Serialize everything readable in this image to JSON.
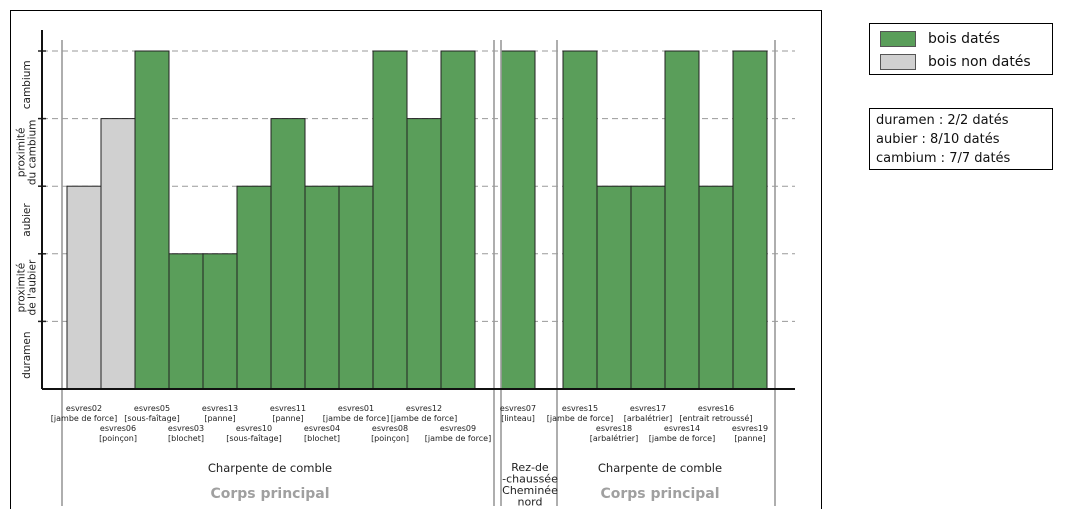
{
  "chart_data": {
    "type": "bar",
    "y_levels": [
      "duramen",
      "proximité de l'aubier",
      "aubier",
      "proximité du cambium",
      "cambium"
    ],
    "y_tick_labels": [
      {
        "lines": [
          "duramen"
        ]
      },
      {
        "lines": [
          "proximité",
          "de l'aubier"
        ]
      },
      {
        "lines": [
          "aubier"
        ]
      },
      {
        "lines": [
          "proximité",
          "du cambium"
        ]
      },
      {
        "lines": [
          "cambium"
        ]
      }
    ],
    "ylim": [
      0,
      5
    ],
    "grid": true,
    "legend_position": "top-right",
    "series": [
      {
        "name": "bois datés",
        "color": "#5a9e5a"
      },
      {
        "name": "bois non datés",
        "color": "#d0d0d0"
      }
    ],
    "groups": [
      {
        "section": "Charpente de comble",
        "area": "Corps principal",
        "bars": [
          {
            "id": "esvres02",
            "role": "[jambe de force]",
            "value": 3,
            "dated": false
          },
          {
            "id": "esvres06",
            "role": "[poinçon]",
            "value": 4,
            "dated": false
          },
          {
            "id": "esvres05",
            "role": "[sous-faîtage]",
            "value": 5,
            "dated": true
          },
          {
            "id": "esvres03",
            "role": "[blochet]",
            "value": 2,
            "dated": true
          },
          {
            "id": "esvres13",
            "role": "[panne]",
            "value": 2,
            "dated": true
          },
          {
            "id": "esvres10",
            "role": "[sous-faîtage]",
            "value": 3,
            "dated": true
          },
          {
            "id": "esvres11",
            "role": "[panne]",
            "value": 4,
            "dated": true
          },
          {
            "id": "esvres04",
            "role": "[blochet]",
            "value": 3,
            "dated": true
          },
          {
            "id": "esvres01",
            "role": "[jambe de force]",
            "value": 3,
            "dated": true
          },
          {
            "id": "esvres08",
            "role": "[poinçon]",
            "value": 5,
            "dated": true
          },
          {
            "id": "esvres12",
            "role": "[jambe de force]",
            "value": 4,
            "dated": true
          },
          {
            "id": "esvres09",
            "role": "[jambe de force]",
            "value": 5,
            "dated": true
          }
        ]
      },
      {
        "section": "Rez-de -chaussée Cheminée nord",
        "section_lines": [
          "Rez-de",
          "-chaussée",
          "Cheminée",
          "nord"
        ],
        "area": "",
        "bars": [
          {
            "id": "esvres07",
            "role": "[linteau]",
            "value": 5,
            "dated": true
          }
        ]
      },
      {
        "section": "Charpente de comble",
        "area": "Corps principal",
        "bars": [
          {
            "id": "esvres15",
            "role": "[jambe de force]",
            "value": 5,
            "dated": true
          },
          {
            "id": "esvres18",
            "role": "[arbalétrier]",
            "value": 3,
            "dated": true
          },
          {
            "id": "esvres17",
            "role": "[arbalétrier]",
            "value": 3,
            "dated": true
          },
          {
            "id": "esvres14",
            "role": "[jambe de force]",
            "value": 5,
            "dated": true
          },
          {
            "id": "esvres16",
            "role": "[entrait retroussé]",
            "value": 3,
            "dated": true
          },
          {
            "id": "esvres19",
            "role": "[panne]",
            "value": 5,
            "dated": true
          }
        ]
      }
    ]
  },
  "legend": {
    "dated_label": "bois datés",
    "undated_label": "bois non datés"
  },
  "stats": {
    "line1": "duramen : 2/2 datés",
    "line2": "aubier : 8/10 datés",
    "line3": "cambium : 7/7 datés"
  },
  "colors": {
    "dated": "#5a9e5a",
    "undated": "#d0d0d0",
    "area_label": "#a0a0a0"
  }
}
